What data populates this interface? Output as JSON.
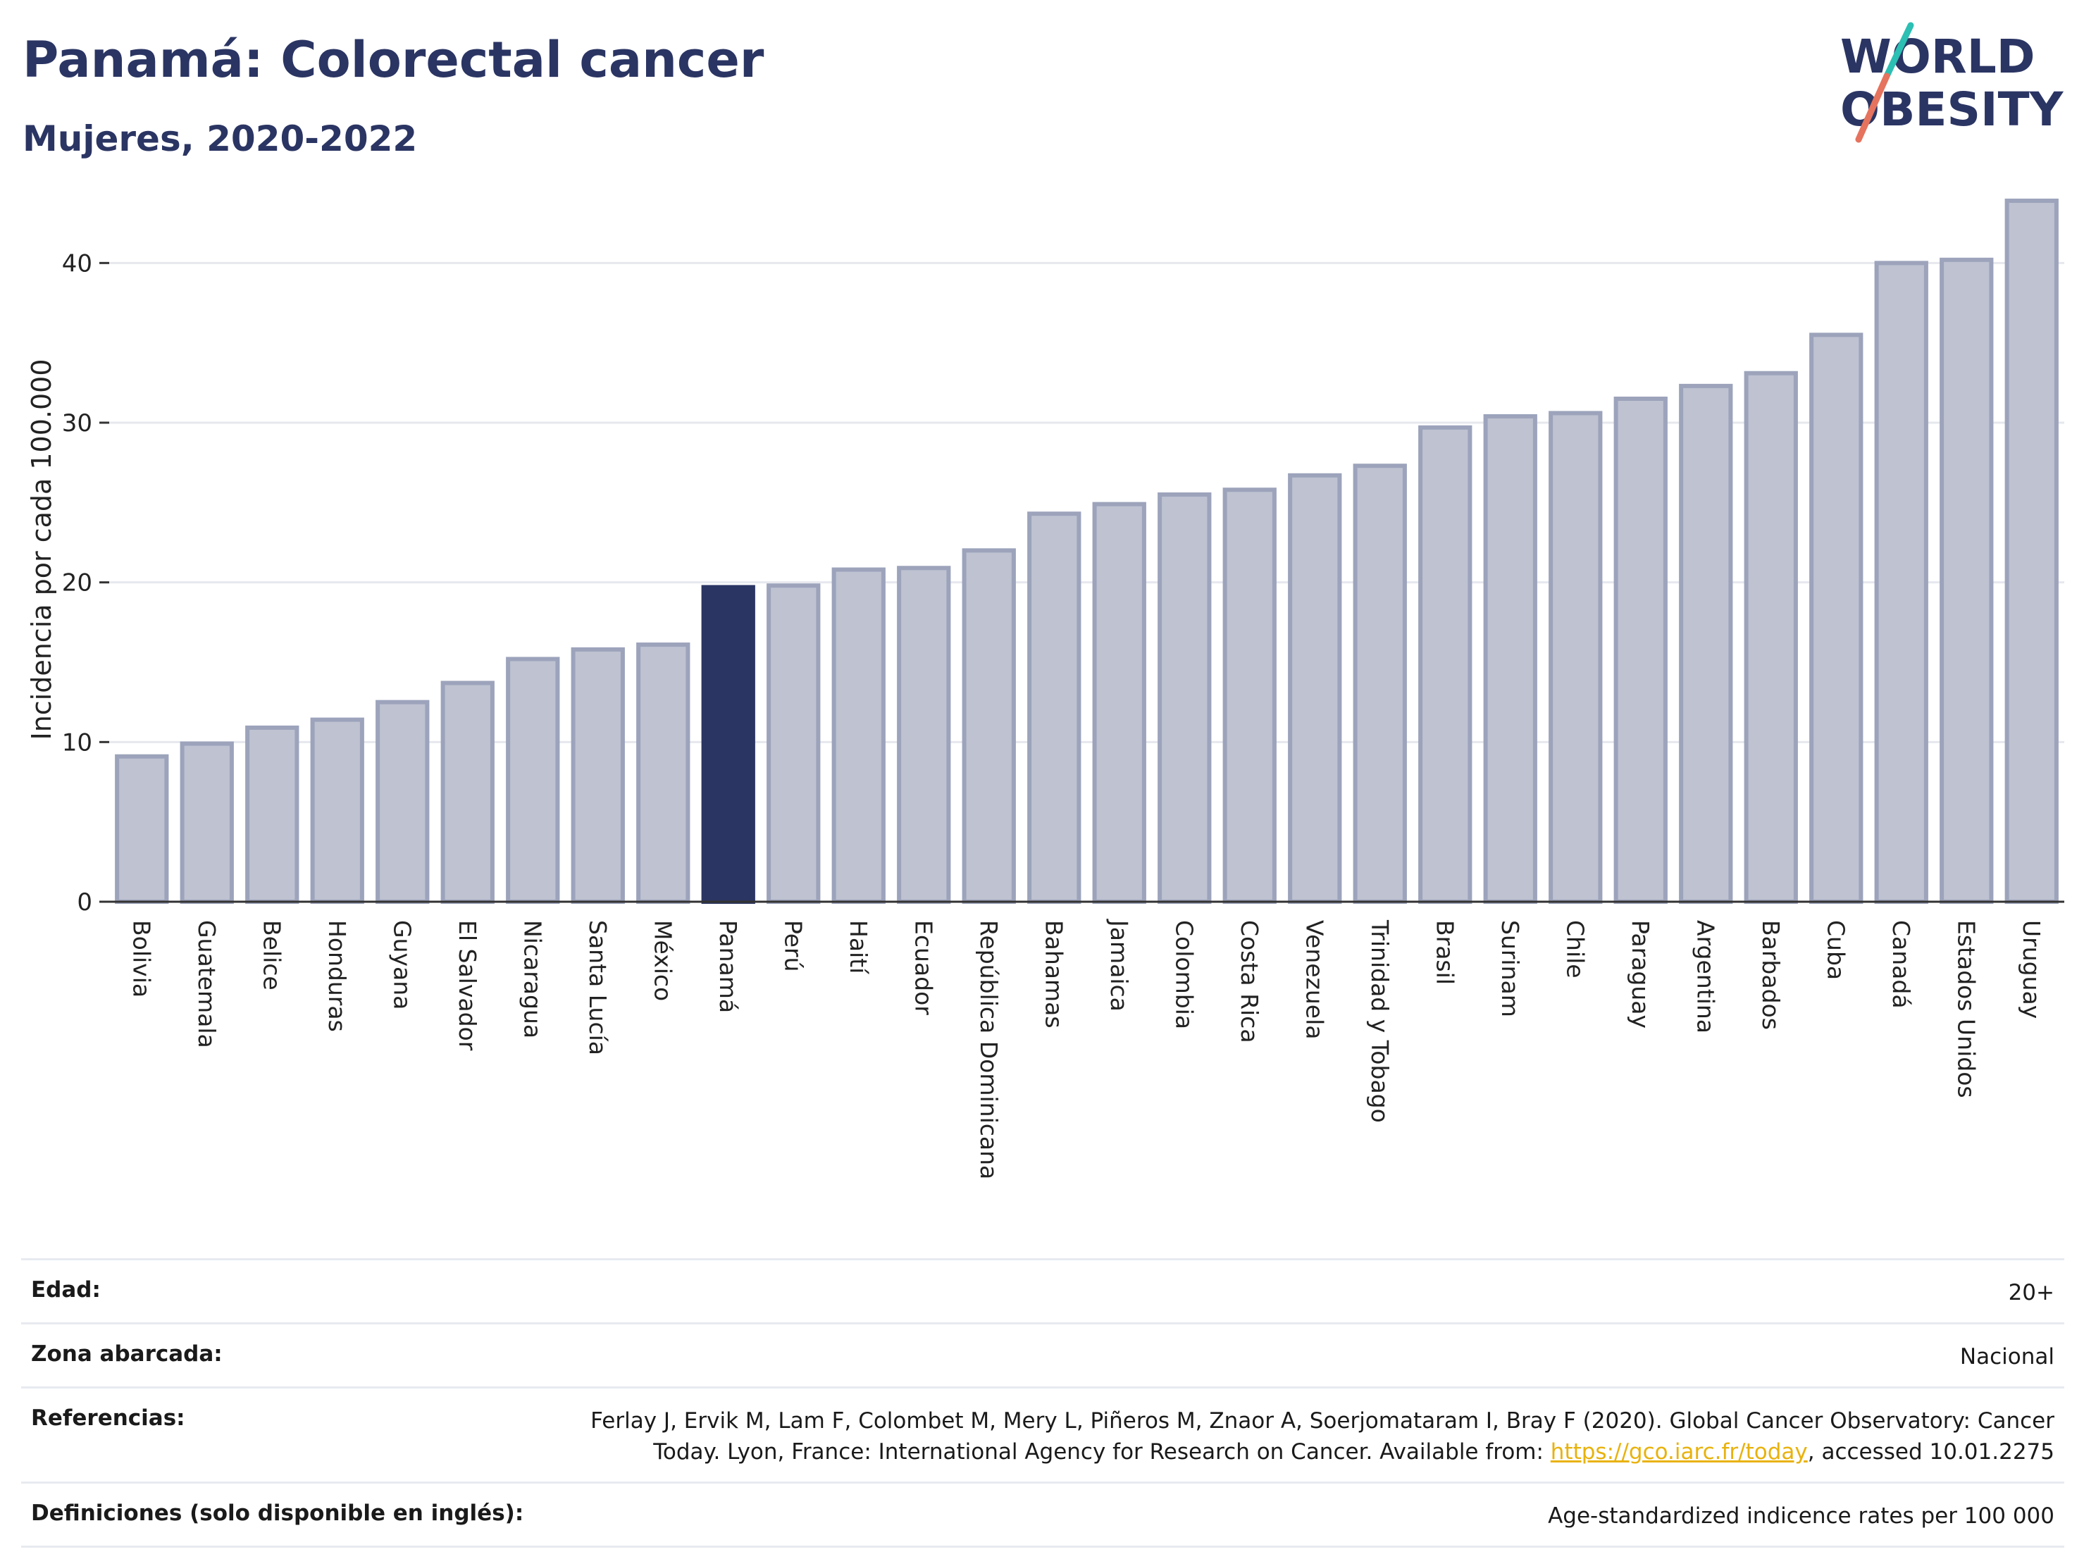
{
  "header": {
    "title": "Panamá: Colorectal cancer",
    "subtitle": "Mujeres, 2020-2022"
  },
  "logo": {
    "line1": "WORLD",
    "line2": "OBESITY"
  },
  "colors": {
    "highlight": "#2b3563",
    "bar_fill": "#bec2d1",
    "bar_stroke": "#9ca3bb",
    "logo_teal": "#2cbfb3",
    "logo_red": "#e5735e",
    "link": "#e8b20e"
  },
  "chart_data": {
    "type": "bar",
    "ylabel": "Incidencia por cada 100.000",
    "ylim": [
      0,
      45
    ],
    "yticks": [
      0,
      10,
      20,
      30,
      40
    ],
    "grid": true,
    "highlight": "Panamá",
    "categories": [
      "Bolivia",
      "Guatemala",
      "Belice",
      "Honduras",
      "Guyana",
      "El Salvador",
      "Nicaragua",
      "Santa Lucía",
      "México",
      "Panamá",
      "Perú",
      "Haití",
      "Ecuador",
      "República Dominicana",
      "Bahamas",
      "Jamaica",
      "Colombia",
      "Costa Rica",
      "Venezuela",
      "Trinidad y Tobago",
      "Brasil",
      "Surinam",
      "Chile",
      "Paraguay",
      "Argentina",
      "Barbados",
      "Cuba",
      "Canadá",
      "Estados Unidos",
      "Uruguay"
    ],
    "values": [
      9.1,
      9.9,
      10.9,
      11.4,
      12.5,
      13.7,
      15.2,
      15.8,
      16.1,
      19.7,
      19.8,
      20.8,
      20.9,
      22.0,
      24.3,
      24.9,
      25.5,
      25.8,
      26.7,
      27.3,
      29.7,
      30.4,
      30.6,
      31.5,
      32.3,
      33.1,
      35.5,
      40.0,
      40.2,
      43.9
    ]
  },
  "info": {
    "age_label": "Edad:",
    "age_value": "20+",
    "zone_label": "Zona abarcada:",
    "zone_value": "Nacional",
    "ref_label": "Referencias:",
    "ref_line1": "Ferlay J, Ervik M, Lam F, Colombet M, Mery L, Piñeros M, Znaor A, Soerjomataram I, Bray F (2020). Global Cancer Observatory: Cancer",
    "ref_line2_pre": "Today. Lyon, France: International Agency for Research on Cancer. Available from: ",
    "ref_link": "https://gco.iarc.fr/today",
    "ref_line2_post": ", accessed 10.01.2275",
    "def_label": "Definiciones (solo disponible en inglés):",
    "def_value": "Age-standardized indicence rates per 100 000"
  }
}
